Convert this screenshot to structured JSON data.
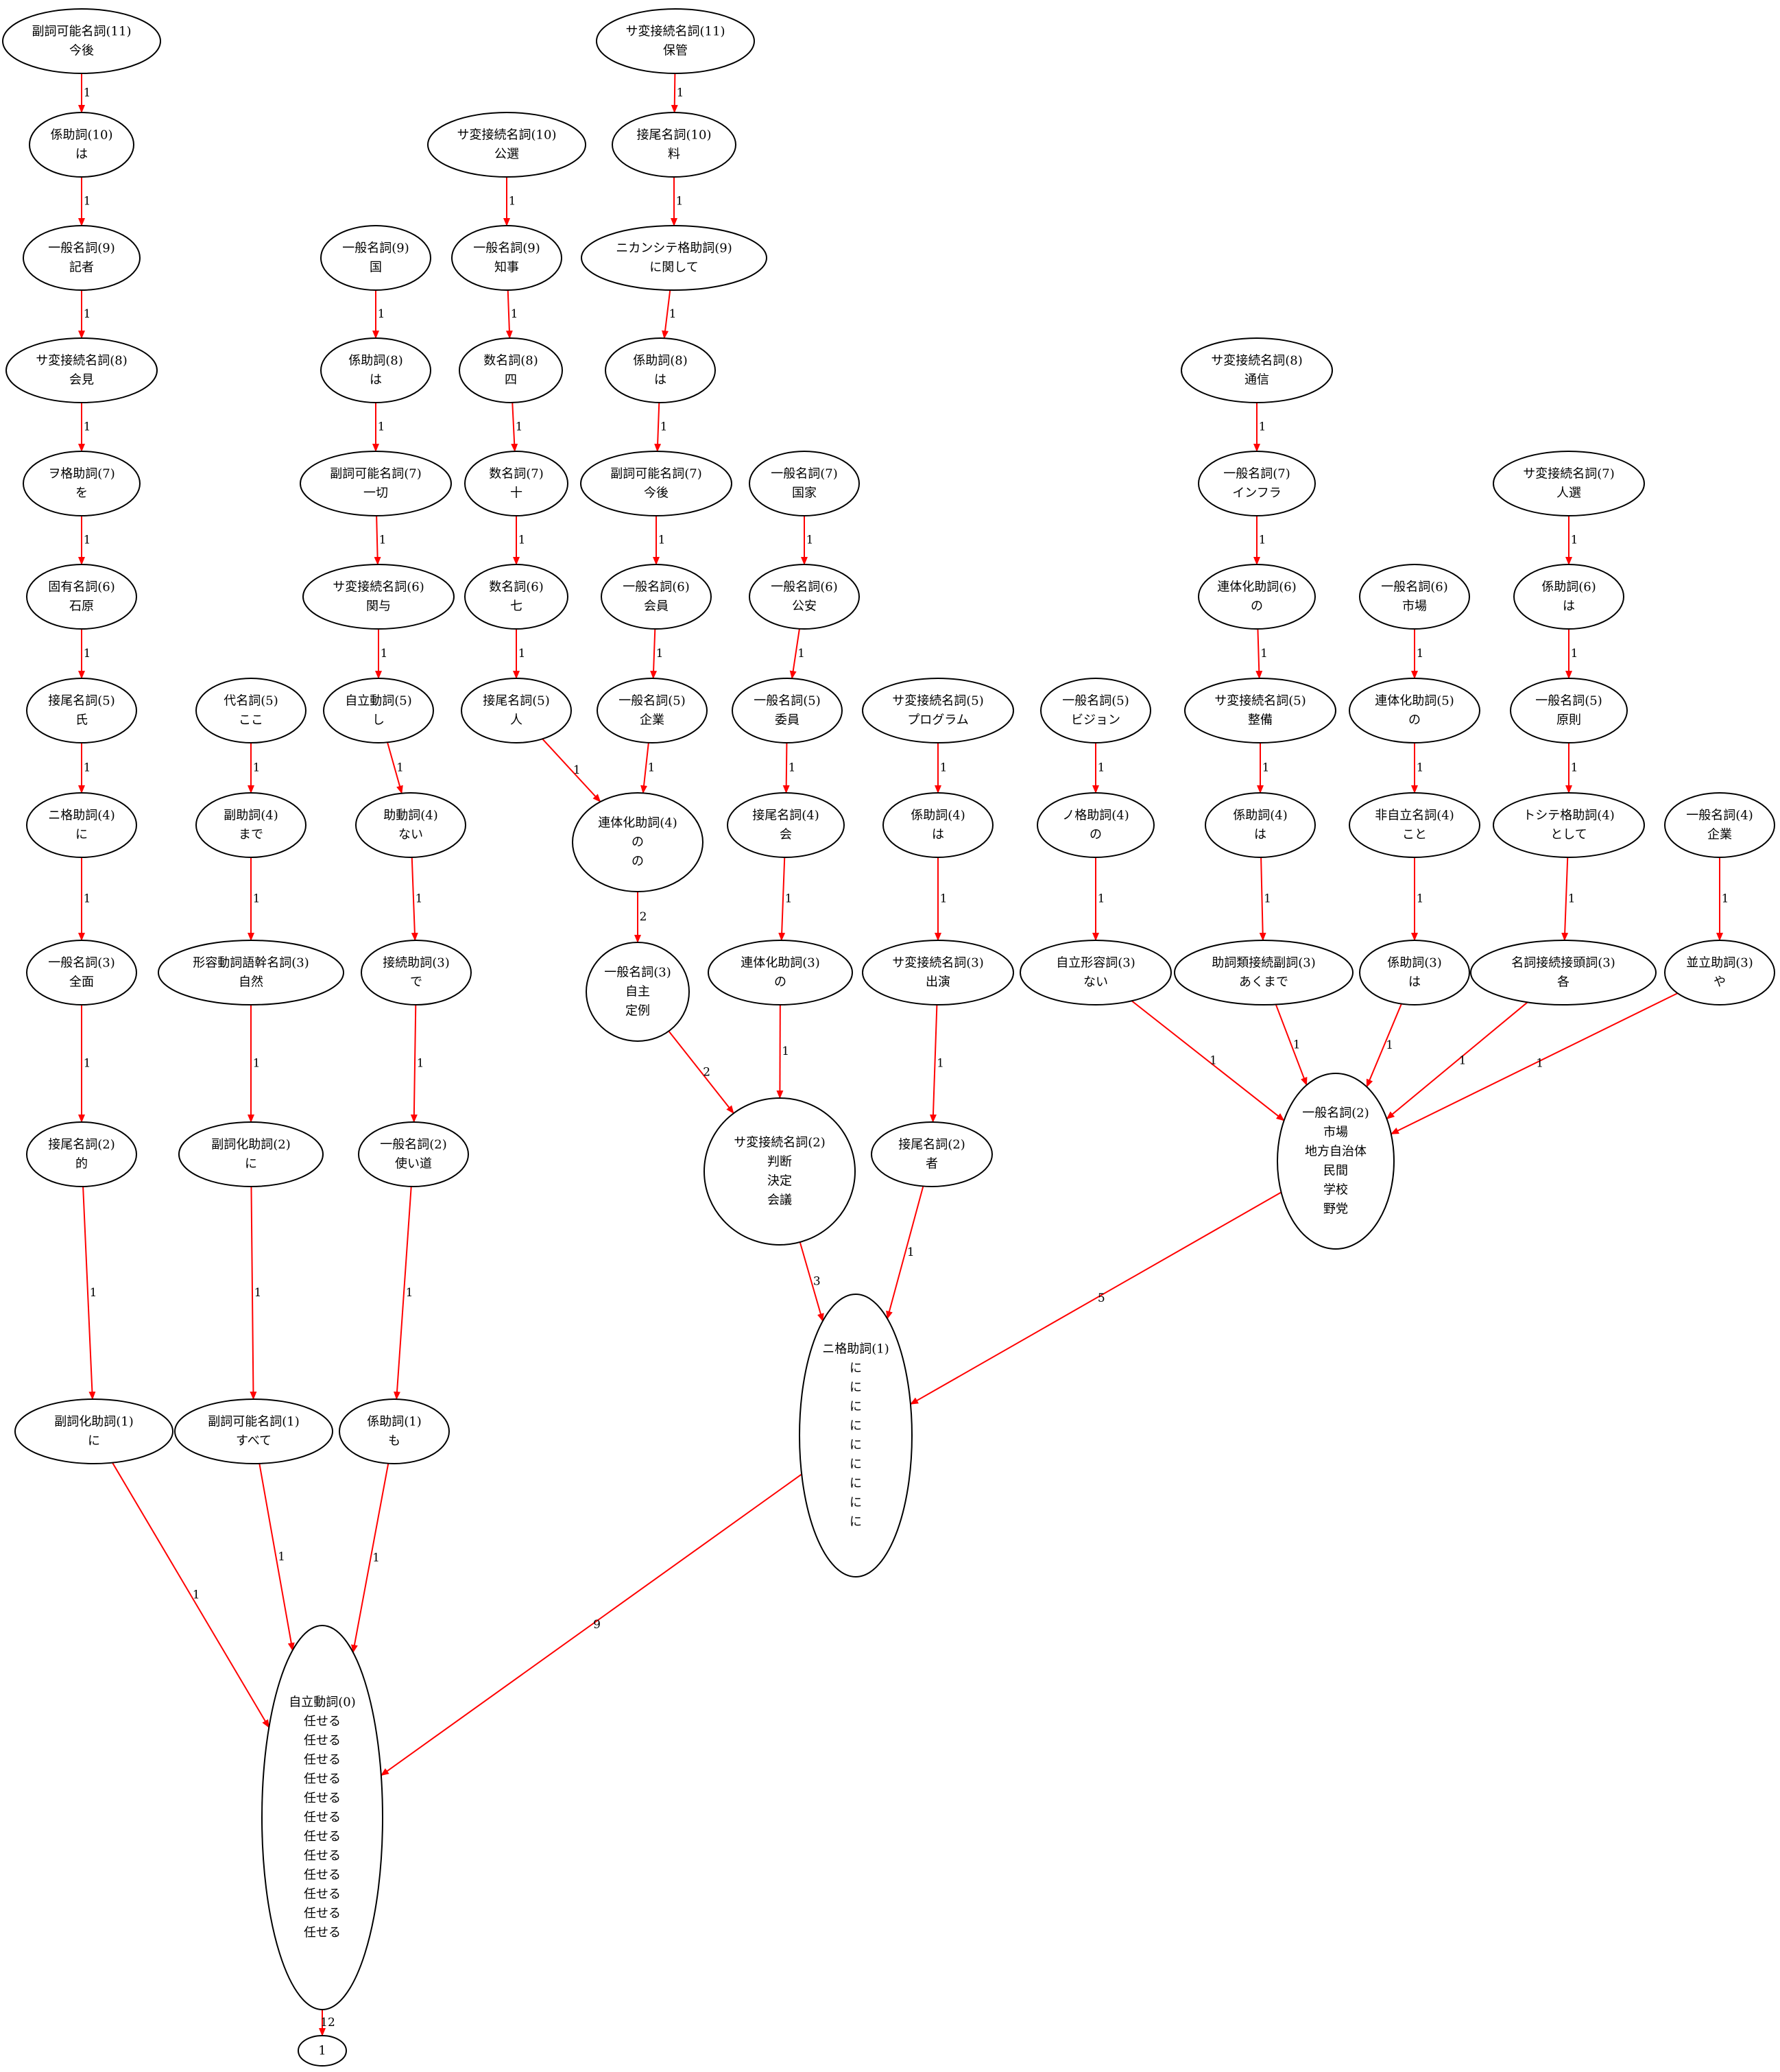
{
  "nodes": {
    "a11": {
      "lines": [
        "副詞可能名詞(11)",
        "今後"
      ]
    },
    "a10": {
      "lines": [
        "係助詞(10)",
        "は"
      ]
    },
    "a9": {
      "lines": [
        "一般名詞(9)",
        "記者"
      ]
    },
    "a8": {
      "lines": [
        "サ変接続名詞(8)",
        "会見"
      ]
    },
    "a7": {
      "lines": [
        "ヲ格助詞(7)",
        "を"
      ]
    },
    "a6": {
      "lines": [
        "固有名詞(6)",
        "石原"
      ]
    },
    "a5": {
      "lines": [
        "接尾名詞(5)",
        "氏"
      ]
    },
    "a4": {
      "lines": [
        "ニ格助詞(4)",
        "に"
      ]
    },
    "a3": {
      "lines": [
        "一般名詞(3)",
        "全面"
      ]
    },
    "a2": {
      "lines": [
        "接尾名詞(2)",
        "的"
      ]
    },
    "a1": {
      "lines": [
        "副詞化助詞(1)",
        "に"
      ]
    },
    "b5": {
      "lines": [
        "代名詞(5)",
        "ここ"
      ]
    },
    "b4": {
      "lines": [
        "副助詞(4)",
        "まで"
      ]
    },
    "b3": {
      "lines": [
        "形容動詞語幹名詞(3)",
        "自然"
      ]
    },
    "b2": {
      "lines": [
        "副詞化助詞(2)",
        "に"
      ]
    },
    "b1": {
      "lines": [
        "副詞可能名詞(1)",
        "すべて"
      ]
    },
    "c9": {
      "lines": [
        "一般名詞(9)",
        "国"
      ]
    },
    "c8": {
      "lines": [
        "係助詞(8)",
        "は"
      ]
    },
    "c7": {
      "lines": [
        "副詞可能名詞(7)",
        "一切"
      ]
    },
    "c6": {
      "lines": [
        "サ変接続名詞(6)",
        "関与"
      ]
    },
    "c5": {
      "lines": [
        "自立動詞(5)",
        "し"
      ]
    },
    "c4": {
      "lines": [
        "助動詞(4)",
        "ない"
      ]
    },
    "c3": {
      "lines": [
        "接続助詞(3)",
        "で"
      ]
    },
    "c2": {
      "lines": [
        "一般名詞(2)",
        "使い道"
      ]
    },
    "c1": {
      "lines": [
        "係助詞(1)",
        "も"
      ]
    },
    "d10": {
      "lines": [
        "サ変接続名詞(10)",
        "公選"
      ]
    },
    "d9": {
      "lines": [
        "一般名詞(9)",
        "知事"
      ]
    },
    "d8": {
      "lines": [
        "数名詞(8)",
        "四"
      ]
    },
    "d7": {
      "lines": [
        "数名詞(7)",
        "十"
      ]
    },
    "d6": {
      "lines": [
        "数名詞(6)",
        "七"
      ]
    },
    "d5": {
      "lines": [
        "接尾名詞(5)",
        "人"
      ]
    },
    "e11": {
      "lines": [
        "サ変接続名詞(11)",
        "保管"
      ]
    },
    "e10": {
      "lines": [
        "接尾名詞(10)",
        "料"
      ]
    },
    "e9": {
      "lines": [
        "ニカンシテ格助詞(9)",
        "に関して"
      ]
    },
    "e8": {
      "lines": [
        "係助詞(8)",
        "は"
      ]
    },
    "e7": {
      "lines": [
        "副詞可能名詞(7)",
        "今後"
      ]
    },
    "e6": {
      "lines": [
        "一般名詞(6)",
        "会員"
      ]
    },
    "e5": {
      "lines": [
        "一般名詞(5)",
        "企業"
      ]
    },
    "rn4": {
      "lines": [
        "連体化助詞(4)",
        "の",
        "の"
      ]
    },
    "jr3": {
      "lines": [
        "一般名詞(3)",
        "自主",
        "定例"
      ]
    },
    "f7": {
      "lines": [
        "一般名詞(7)",
        "国家"
      ]
    },
    "f6": {
      "lines": [
        "一般名詞(6)",
        "公安"
      ]
    },
    "f5": {
      "lines": [
        "一般名詞(5)",
        "委員"
      ]
    },
    "f4": {
      "lines": [
        "接尾名詞(4)",
        "会"
      ]
    },
    "f3": {
      "lines": [
        "連体化助詞(3)",
        "の"
      ]
    },
    "sh2": {
      "lines": [
        "サ変接続名詞(2)",
        "判断",
        "決定",
        "会議"
      ]
    },
    "g5": {
      "lines": [
        "サ変接続名詞(5)",
        "プログラム"
      ]
    },
    "g4": {
      "lines": [
        "係助詞(4)",
        "は"
      ]
    },
    "g3": {
      "lines": [
        "サ変接続名詞(3)",
        "出演"
      ]
    },
    "g2": {
      "lines": [
        "接尾名詞(2)",
        "者"
      ]
    },
    "ni1": {
      "lines": [
        "ニ格助詞(1)",
        "に",
        "に",
        "に",
        "に",
        "に",
        "に",
        "に",
        "に",
        "に"
      ]
    },
    "h5": {
      "lines": [
        "一般名詞(5)",
        "ビジョン"
      ]
    },
    "h4": {
      "lines": [
        "ノ格助詞(4)",
        "の"
      ]
    },
    "h3": {
      "lines": [
        "自立形容詞(3)",
        "ない"
      ]
    },
    "i8": {
      "lines": [
        "サ変接続名詞(8)",
        "通信"
      ]
    },
    "i7": {
      "lines": [
        "一般名詞(7)",
        "インフラ"
      ]
    },
    "i6": {
      "lines": [
        "連体化助詞(6)",
        "の"
      ]
    },
    "i5": {
      "lines": [
        "サ変接続名詞(5)",
        "整備"
      ]
    },
    "i4": {
      "lines": [
        "係助詞(4)",
        "は"
      ]
    },
    "i3": {
      "lines": [
        "助詞類接続副詞(3)",
        "あくまで"
      ]
    },
    "j6": {
      "lines": [
        "一般名詞(6)",
        "市場"
      ]
    },
    "j5": {
      "lines": [
        "連体化助詞(5)",
        "の"
      ]
    },
    "j4": {
      "lines": [
        "非自立名詞(4)",
        "こと"
      ]
    },
    "j3": {
      "lines": [
        "係助詞(3)",
        "は"
      ]
    },
    "k7": {
      "lines": [
        "サ変接続名詞(7)",
        "人選"
      ]
    },
    "k6": {
      "lines": [
        "係助詞(6)",
        "は"
      ]
    },
    "k5": {
      "lines": [
        "一般名詞(5)",
        "原則"
      ]
    },
    "k4": {
      "lines": [
        "トシテ格助詞(4)",
        "として"
      ]
    },
    "k3": {
      "lines": [
        "名詞接続接頭詞(3)",
        "各"
      ]
    },
    "l4": {
      "lines": [
        "一般名詞(4)",
        "企業"
      ]
    },
    "l3": {
      "lines": [
        "並立助詞(3)",
        "や"
      ]
    },
    "ip2": {
      "lines": [
        "一般名詞(2)",
        "市場",
        "地方自治体",
        "民間",
        "学校",
        "野党"
      ]
    },
    "root": {
      "lines": [
        "自立動詞(0)",
        "任せる",
        "任せる",
        "任せる",
        "任せる",
        "任せる",
        "任せる",
        "任せる",
        "任せる",
        "任せる",
        "任せる",
        "任せる",
        "任せる"
      ]
    },
    "end": {
      "lines": [
        "1"
      ]
    }
  },
  "edges": [
    {
      "from": "a11",
      "to": "a10",
      "label": "1"
    },
    {
      "from": "a10",
      "to": "a9",
      "label": "1"
    },
    {
      "from": "a9",
      "to": "a8",
      "label": "1"
    },
    {
      "from": "a8",
      "to": "a7",
      "label": "1"
    },
    {
      "from": "a7",
      "to": "a6",
      "label": "1"
    },
    {
      "from": "a6",
      "to": "a5",
      "label": "1"
    },
    {
      "from": "a5",
      "to": "a4",
      "label": "1"
    },
    {
      "from": "a4",
      "to": "a3",
      "label": "1"
    },
    {
      "from": "a3",
      "to": "a2",
      "label": "1"
    },
    {
      "from": "a2",
      "to": "a1",
      "label": "1"
    },
    {
      "from": "a1",
      "to": "root",
      "label": "1"
    },
    {
      "from": "b5",
      "to": "b4",
      "label": "1"
    },
    {
      "from": "b4",
      "to": "b3",
      "label": "1"
    },
    {
      "from": "b3",
      "to": "b2",
      "label": "1"
    },
    {
      "from": "b2",
      "to": "b1",
      "label": "1"
    },
    {
      "from": "b1",
      "to": "root",
      "label": "1"
    },
    {
      "from": "c9",
      "to": "c8",
      "label": "1"
    },
    {
      "from": "c8",
      "to": "c7",
      "label": "1"
    },
    {
      "from": "c7",
      "to": "c6",
      "label": "1"
    },
    {
      "from": "c6",
      "to": "c5",
      "label": "1"
    },
    {
      "from": "c5",
      "to": "c4",
      "label": "1"
    },
    {
      "from": "c4",
      "to": "c3",
      "label": "1"
    },
    {
      "from": "c3",
      "to": "c2",
      "label": "1"
    },
    {
      "from": "c2",
      "to": "c1",
      "label": "1"
    },
    {
      "from": "c1",
      "to": "root",
      "label": "1"
    },
    {
      "from": "d10",
      "to": "d9",
      "label": "1"
    },
    {
      "from": "d9",
      "to": "d8",
      "label": "1"
    },
    {
      "from": "d8",
      "to": "d7",
      "label": "1"
    },
    {
      "from": "d7",
      "to": "d6",
      "label": "1"
    },
    {
      "from": "d6",
      "to": "d5",
      "label": "1"
    },
    {
      "from": "d5",
      "to": "rn4",
      "label": "1"
    },
    {
      "from": "e11",
      "to": "e10",
      "label": "1"
    },
    {
      "from": "e10",
      "to": "e9",
      "label": "1"
    },
    {
      "from": "e9",
      "to": "e8",
      "label": "1"
    },
    {
      "from": "e8",
      "to": "e7",
      "label": "1"
    },
    {
      "from": "e7",
      "to": "e6",
      "label": "1"
    },
    {
      "from": "e6",
      "to": "e5",
      "label": "1"
    },
    {
      "from": "e5",
      "to": "rn4",
      "label": "1"
    },
    {
      "from": "rn4",
      "to": "jr3",
      "label": "2"
    },
    {
      "from": "jr3",
      "to": "sh2",
      "label": "2"
    },
    {
      "from": "f7",
      "to": "f6",
      "label": "1"
    },
    {
      "from": "f6",
      "to": "f5",
      "label": "1"
    },
    {
      "from": "f5",
      "to": "f4",
      "label": "1"
    },
    {
      "from": "f4",
      "to": "f3",
      "label": "1"
    },
    {
      "from": "f3",
      "to": "sh2",
      "label": "1"
    },
    {
      "from": "sh2",
      "to": "ni1",
      "label": "3"
    },
    {
      "from": "g5",
      "to": "g4",
      "label": "1"
    },
    {
      "from": "g4",
      "to": "g3",
      "label": "1"
    },
    {
      "from": "g3",
      "to": "g2",
      "label": "1"
    },
    {
      "from": "g2",
      "to": "ni1",
      "label": "1"
    },
    {
      "from": "h5",
      "to": "h4",
      "label": "1"
    },
    {
      "from": "h4",
      "to": "h3",
      "label": "1"
    },
    {
      "from": "h3",
      "to": "ip2",
      "label": "1"
    },
    {
      "from": "i8",
      "to": "i7",
      "label": "1"
    },
    {
      "from": "i7",
      "to": "i6",
      "label": "1"
    },
    {
      "from": "i6",
      "to": "i5",
      "label": "1"
    },
    {
      "from": "i5",
      "to": "i4",
      "label": "1"
    },
    {
      "from": "i4",
      "to": "i3",
      "label": "1"
    },
    {
      "from": "i3",
      "to": "ip2",
      "label": "1"
    },
    {
      "from": "j6",
      "to": "j5",
      "label": "1"
    },
    {
      "from": "j5",
      "to": "j4",
      "label": "1"
    },
    {
      "from": "j4",
      "to": "j3",
      "label": "1"
    },
    {
      "from": "j3",
      "to": "ip2",
      "label": "1"
    },
    {
      "from": "k7",
      "to": "k6",
      "label": "1"
    },
    {
      "from": "k6",
      "to": "k5",
      "label": "1"
    },
    {
      "from": "k5",
      "to": "k4",
      "label": "1"
    },
    {
      "from": "k4",
      "to": "k3",
      "label": "1"
    },
    {
      "from": "k3",
      "to": "ip2",
      "label": "1"
    },
    {
      "from": "l4",
      "to": "l3",
      "label": "1"
    },
    {
      "from": "l3",
      "to": "ip2",
      "label": "1"
    },
    {
      "from": "ip2",
      "to": "ni1",
      "label": "5"
    },
    {
      "from": "ni1",
      "to": "root",
      "label": "9"
    },
    {
      "from": "root",
      "to": "end",
      "label": "12"
    }
  ]
}
